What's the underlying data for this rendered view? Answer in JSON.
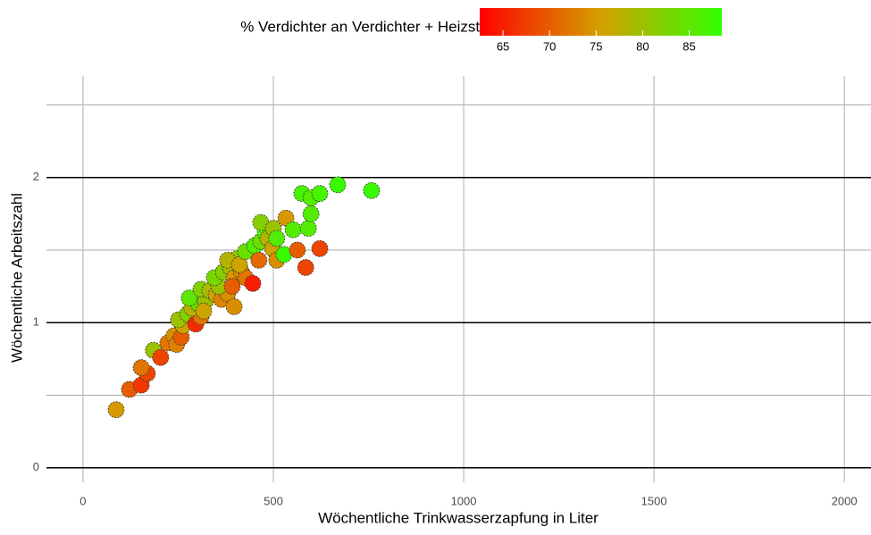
{
  "chart_data": {
    "type": "scatter",
    "xlabel": "Wöchentliche Trinkwasserzapfung in Liter",
    "ylabel": "Wöchentliche Arbeitszahl",
    "xlim": [
      -96,
      2070
    ],
    "ylim": [
      -0.1,
      2.7
    ],
    "xticks": [
      0,
      500,
      1000,
      1500,
      2000
    ],
    "yticks": [
      0,
      1,
      2
    ],
    "y_minor_grid": [
      0.5,
      1.5,
      2.5
    ],
    "grid": true,
    "x": [
      87,
      122,
      153,
      169,
      153,
      185,
      204,
      223,
      239,
      246,
      258,
      263,
      251,
      275,
      296,
      310,
      286,
      303,
      279,
      322,
      310,
      333,
      350,
      364,
      380,
      357,
      345,
      369,
      387,
      397,
      404,
      380,
      416,
      427,
      446,
      411,
      427,
      451,
      462,
      467,
      479,
      467,
      486,
      498,
      509,
      500,
      509,
      528,
      533,
      552,
      563,
      575,
      585,
      592,
      599,
      599,
      622,
      622,
      669,
      758,
      317,
      392,
      397
    ],
    "y": [
      0.4,
      0.54,
      0.57,
      0.65,
      0.69,
      0.81,
      0.76,
      0.86,
      0.91,
      0.85,
      0.9,
      0.98,
      1.02,
      1.06,
      0.99,
      1.04,
      1.1,
      1.13,
      1.17,
      1.15,
      1.23,
      1.22,
      1.19,
      1.16,
      1.2,
      1.25,
      1.31,
      1.35,
      1.38,
      1.31,
      1.44,
      1.43,
      1.35,
      1.31,
      1.27,
      1.4,
      1.49,
      1.53,
      1.43,
      1.56,
      1.62,
      1.69,
      1.58,
      1.51,
      1.43,
      1.65,
      1.58,
      1.47,
      1.72,
      1.64,
      1.5,
      1.89,
      1.38,
      1.65,
      1.86,
      1.75,
      1.89,
      1.51,
      1.95,
      1.91,
      1.08,
      1.25,
      1.11
    ],
    "color_values": [
      75,
      70,
      67,
      68,
      72,
      80,
      68,
      72,
      74,
      73,
      70,
      76,
      80,
      82,
      66,
      72,
      78,
      84,
      85,
      80,
      82,
      79,
      76,
      73,
      74,
      80,
      83,
      82,
      79,
      75,
      81,
      78,
      74,
      72,
      65,
      76,
      84,
      86,
      71,
      84,
      87,
      82,
      78,
      76,
      74,
      80,
      86,
      88,
      75,
      86,
      70,
      87,
      68,
      86,
      86,
      86,
      87,
      68,
      88,
      88,
      76,
      70,
      74
    ],
    "colorbar": {
      "title": "% Verdichter an Verdichter + Heizstab",
      "lim": [
        62.5,
        88.5
      ],
      "ticks": [
        65,
        70,
        75,
        80,
        85
      ],
      "colors": [
        "#ff0000",
        "#d4a000",
        "#33ff00"
      ]
    }
  }
}
